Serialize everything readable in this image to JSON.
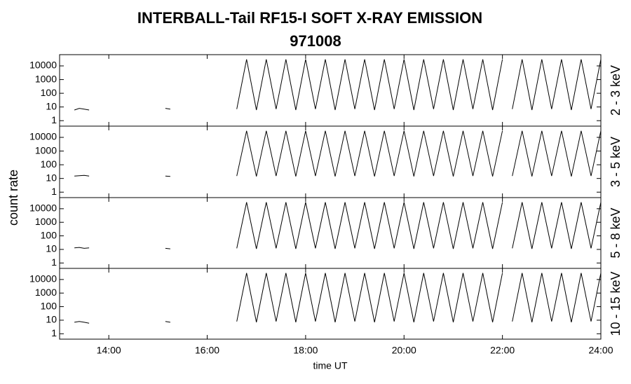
{
  "chart_data": {
    "type": "line",
    "title": "INTERBALL-Tail RF15-I SOFT X-RAY EMISSION",
    "subtitle": "971008",
    "ylabel": "count rate",
    "xlabel": "time UT",
    "xlim": [
      13,
      24
    ],
    "xticks": [
      {
        "value": 14,
        "label": "14:00"
      },
      {
        "value": 16,
        "label": "16:00"
      },
      {
        "value": 18,
        "label": "18:00"
      },
      {
        "value": 20,
        "label": "20:00"
      },
      {
        "value": 22,
        "label": "22:00"
      },
      {
        "value": 24,
        "label": "24:00"
      }
    ],
    "log_scale": true,
    "color": "#000000",
    "x": [
      13.3,
      13.4,
      13.5,
      13.6,
      14.0,
      15.15,
      15.25,
      16.0,
      16.6,
      16.8,
      17.0,
      17.2,
      17.4,
      17.6,
      17.8,
      18.0,
      18.2,
      18.4,
      18.6,
      18.8,
      19.0,
      19.2,
      19.4,
      19.6,
      19.8,
      20.0,
      20.2,
      20.4,
      20.6,
      20.8,
      21.0,
      21.2,
      21.4,
      21.6,
      21.8,
      22.0,
      22.1,
      22.2,
      22.4,
      22.6,
      22.8,
      23.0,
      23.2,
      23.4,
      23.6,
      23.8,
      24.0
    ],
    "panels": [
      {
        "label": "2 - 3 keV",
        "ylim": [
          0.4,
          66000
        ],
        "yticks": [
          1,
          10,
          100,
          1000,
          10000
        ],
        "values": [
          6,
          8,
          7,
          6,
          null,
          8,
          7,
          null,
          7,
          30000,
          6,
          30000,
          7,
          30000,
          6,
          30000,
          7,
          30000,
          6,
          30000,
          7,
          30000,
          6,
          30000,
          7,
          30000,
          6,
          30000,
          7,
          30000,
          6,
          30000,
          7,
          30000,
          6,
          30000,
          null,
          7,
          30000,
          6,
          30000,
          7,
          30000,
          6,
          30000,
          7,
          30000
        ]
      },
      {
        "label": "3 - 5 keV",
        "ylim": [
          0.4,
          66000
        ],
        "yticks": [
          1,
          10,
          100,
          1000,
          10000
        ],
        "values": [
          15,
          16,
          17,
          15,
          null,
          15,
          14,
          null,
          15,
          30000,
          14,
          30000,
          15,
          30000,
          14,
          30000,
          15,
          30000,
          14,
          30000,
          15,
          30000,
          14,
          30000,
          15,
          30000,
          14,
          30000,
          15,
          30000,
          14,
          30000,
          15,
          30000,
          14,
          30000,
          null,
          15,
          30000,
          14,
          30000,
          15,
          30000,
          14,
          30000,
          15,
          30000
        ]
      },
      {
        "label": "5 - 8 keV",
        "ylim": [
          0.4,
          66000
        ],
        "yticks": [
          1,
          10,
          100,
          1000,
          10000
        ],
        "values": [
          13,
          14,
          12,
          13,
          null,
          12,
          11,
          null,
          12,
          30000,
          11,
          30000,
          12,
          30000,
          11,
          30000,
          12,
          30000,
          11,
          30000,
          12,
          30000,
          11,
          30000,
          12,
          30000,
          11,
          30000,
          12,
          30000,
          11,
          30000,
          12,
          30000,
          11,
          30000,
          null,
          12,
          30000,
          11,
          30000,
          12,
          30000,
          11,
          30000,
          12,
          30000
        ]
      },
      {
        "label": "10 - 15 keV",
        "ylim": [
          0.4,
          66000
        ],
        "yticks": [
          1,
          10,
          100,
          1000,
          10000
        ],
        "values": [
          7,
          8,
          7,
          6,
          null,
          8,
          7,
          null,
          8,
          30000,
          7,
          30000,
          8,
          30000,
          7,
          30000,
          8,
          30000,
          7,
          30000,
          8,
          30000,
          7,
          30000,
          8,
          30000,
          7,
          30000,
          8,
          30000,
          7,
          30000,
          8,
          30000,
          7,
          30000,
          null,
          8,
          30000,
          7,
          30000,
          8,
          30000,
          7,
          30000,
          8,
          30000
        ]
      }
    ]
  }
}
